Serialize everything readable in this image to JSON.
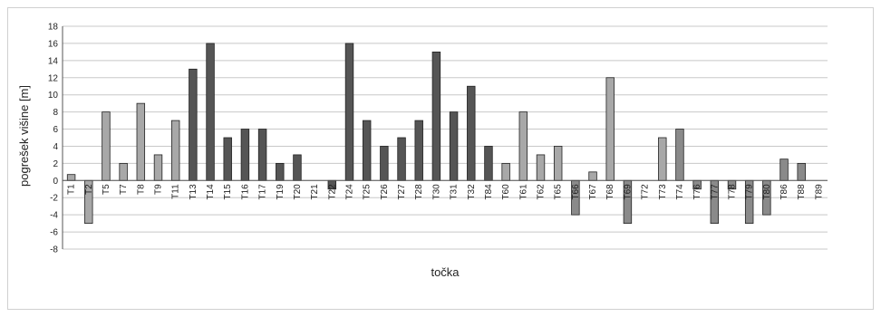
{
  "chart_data": {
    "type": "bar",
    "title": "",
    "xlabel": "točka",
    "ylabel": "pogrešek višine [m]",
    "ylim": [
      -8,
      18
    ],
    "ytick_step": 2,
    "grid": true,
    "categories": [
      "T1",
      "T2",
      "T5",
      "T7",
      "T8",
      "T9",
      "T11",
      "T13",
      "T14",
      "T15",
      "T16",
      "T17",
      "T19",
      "T20",
      "T21",
      "T22",
      "T24",
      "T25",
      "T26",
      "T27",
      "T28",
      "T30",
      "T31",
      "T32",
      "T84",
      "T60",
      "T61",
      "T62",
      "T65",
      "T66",
      "T67",
      "T68",
      "T69",
      "T72",
      "T73",
      "T74",
      "T76",
      "T77",
      "T78",
      "T79",
      "T80",
      "T86",
      "T88",
      "T89"
    ],
    "values": [
      0.7,
      -5,
      8,
      2,
      9,
      3,
      7,
      13,
      16,
      5,
      6,
      6,
      2,
      3,
      0,
      -1,
      16,
      7,
      4,
      5,
      7,
      15,
      8,
      11,
      4,
      2,
      8,
      3,
      4,
      -4,
      1,
      12,
      -5,
      0,
      5,
      6,
      -1,
      -5,
      -1,
      -5,
      -4,
      2.5,
      2,
      0
    ],
    "groups": [
      "light",
      "light",
      "light",
      "light",
      "light",
      "light",
      "light",
      "dark",
      "dark",
      "dark",
      "dark",
      "dark",
      "dark",
      "dark",
      "dark",
      "dark",
      "dark",
      "dark",
      "dark",
      "dark",
      "dark",
      "dark",
      "dark",
      "dark",
      "dark",
      "light",
      "light",
      "light",
      "light",
      "mid",
      "light",
      "light",
      "mid",
      "light",
      "light",
      "mid",
      "mid",
      "mid",
      "mid",
      "mid",
      "mid",
      "mid",
      "mid",
      "mid"
    ],
    "colors": {
      "light": "#a8a8a8",
      "mid": "#8a8a8a",
      "dark": "#555555",
      "grid": "#c8c8c8",
      "axis": "#555555",
      "bar_edge": "#222222"
    }
  }
}
